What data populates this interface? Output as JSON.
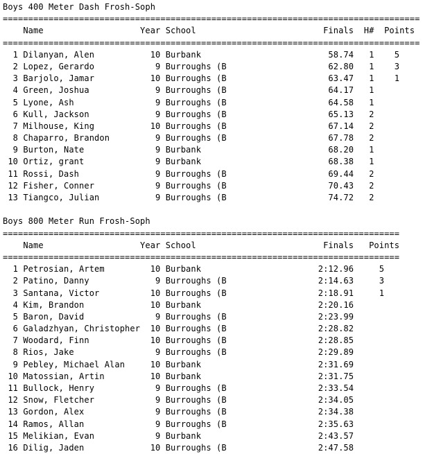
{
  "page": {
    "background_color": "#ffffff",
    "text_color": "#000000"
  },
  "events": [
    {
      "title": "Boys 400 Meter Dash Frosh-Soph",
      "columns": [
        "Name",
        "Year",
        "School",
        "Finals",
        "H#",
        "Points"
      ],
      "results": [
        {
          "place": "1",
          "name": "Dilanyan, Alen",
          "year": "10",
          "school": "Burbank",
          "finals": "58.74",
          "heat": "1",
          "points": "5"
        },
        {
          "place": "2",
          "name": "Lopez, Gerardo",
          "year": "9",
          "school": "Burroughs (B",
          "finals": "62.80",
          "heat": "1",
          "points": "3"
        },
        {
          "place": "3",
          "name": "Barjolo, Jamar",
          "year": "10",
          "school": "Burroughs (B",
          "finals": "63.47",
          "heat": "1",
          "points": "1"
        },
        {
          "place": "4",
          "name": "Green, Joshua",
          "year": "9",
          "school": "Burroughs (B",
          "finals": "64.17",
          "heat": "1",
          "points": ""
        },
        {
          "place": "5",
          "name": "Lyone, Ash",
          "year": "9",
          "school": "Burroughs (B",
          "finals": "64.58",
          "heat": "1",
          "points": ""
        },
        {
          "place": "6",
          "name": "Kull, Jackson",
          "year": "9",
          "school": "Burroughs (B",
          "finals": "65.13",
          "heat": "2",
          "points": ""
        },
        {
          "place": "7",
          "name": "Milhouse, King",
          "year": "10",
          "school": "Burroughs (B",
          "finals": "67.14",
          "heat": "2",
          "points": ""
        },
        {
          "place": "8",
          "name": "Chaparro, Brandon",
          "year": "9",
          "school": "Burroughs (B",
          "finals": "67.78",
          "heat": "2",
          "points": ""
        },
        {
          "place": "9",
          "name": "Burton, Nate",
          "year": "9",
          "school": "Burbank",
          "finals": "68.20",
          "heat": "1",
          "points": ""
        },
        {
          "place": "10",
          "name": "Ortiz, grant",
          "year": "9",
          "school": "Burbank",
          "finals": "68.38",
          "heat": "1",
          "points": ""
        },
        {
          "place": "11",
          "name": "Rossi, Dash",
          "year": "9",
          "school": "Burroughs (B",
          "finals": "69.44",
          "heat": "2",
          "points": ""
        },
        {
          "place": "12",
          "name": "Fisher, Conner",
          "year": "9",
          "school": "Burroughs (B",
          "finals": "70.43",
          "heat": "2",
          "points": ""
        },
        {
          "place": "13",
          "name": "Tiangco, Julian",
          "year": "9",
          "school": "Burroughs (B",
          "finals": "74.72",
          "heat": "2",
          "points": ""
        }
      ]
    },
    {
      "title": "Boys 800 Meter Run Frosh-Soph",
      "columns": [
        "Name",
        "Year",
        "School",
        "Finals",
        "Points"
      ],
      "results": [
        {
          "place": "1",
          "name": "Petrosian, Artem",
          "year": "10",
          "school": "Burbank",
          "finals": "2:12.96",
          "points": "5"
        },
        {
          "place": "2",
          "name": "Patino, Danny",
          "year": "9",
          "school": "Burroughs (B",
          "finals": "2:14.63",
          "points": "3"
        },
        {
          "place": "3",
          "name": "Santana, Victor",
          "year": "10",
          "school": "Burroughs (B",
          "finals": "2:18.91",
          "points": "1"
        },
        {
          "place": "4",
          "name": "Kim, Brandon",
          "year": "10",
          "school": "Burbank",
          "finals": "2:20.16",
          "points": ""
        },
        {
          "place": "5",
          "name": "Baron, David",
          "year": "9",
          "school": "Burroughs (B",
          "finals": "2:23.99",
          "points": ""
        },
        {
          "place": "6",
          "name": "Galadzhyan, Christopher",
          "year": "10",
          "school": "Burroughs (B",
          "finals": "2:28.82",
          "points": ""
        },
        {
          "place": "7",
          "name": "Woodard, Finn",
          "year": "10",
          "school": "Burroughs (B",
          "finals": "2:28.85",
          "points": ""
        },
        {
          "place": "8",
          "name": "Rios, Jake",
          "year": "9",
          "school": "Burroughs (B",
          "finals": "2:29.89",
          "points": ""
        },
        {
          "place": "9",
          "name": "Pebley, Michael Alan",
          "year": "10",
          "school": "Burbank",
          "finals": "2:31.69",
          "points": ""
        },
        {
          "place": "10",
          "name": "Matossian, Artin",
          "year": "10",
          "school": "Burbank",
          "finals": "2:31.75",
          "points": ""
        },
        {
          "place": "11",
          "name": "Bullock, Henry",
          "year": "9",
          "school": "Burroughs (B",
          "finals": "2:33.54",
          "points": ""
        },
        {
          "place": "12",
          "name": "Snow, Fletcher",
          "year": "9",
          "school": "Burroughs (B",
          "finals": "2:34.05",
          "points": ""
        },
        {
          "place": "13",
          "name": "Gordon, Alex",
          "year": "9",
          "school": "Burroughs (B",
          "finals": "2:34.38",
          "points": ""
        },
        {
          "place": "14",
          "name": "Ramos, Allan",
          "year": "9",
          "school": "Burroughs (B",
          "finals": "2:35.63",
          "points": ""
        },
        {
          "place": "15",
          "name": "Melikian, Evan",
          "year": "9",
          "school": "Burbank",
          "finals": "2:43.57",
          "points": ""
        },
        {
          "place": "16",
          "name": "Dilig, Jaden",
          "year": "10",
          "school": "Burroughs (B",
          "finals": "2:47.58",
          "points": ""
        }
      ]
    }
  ]
}
